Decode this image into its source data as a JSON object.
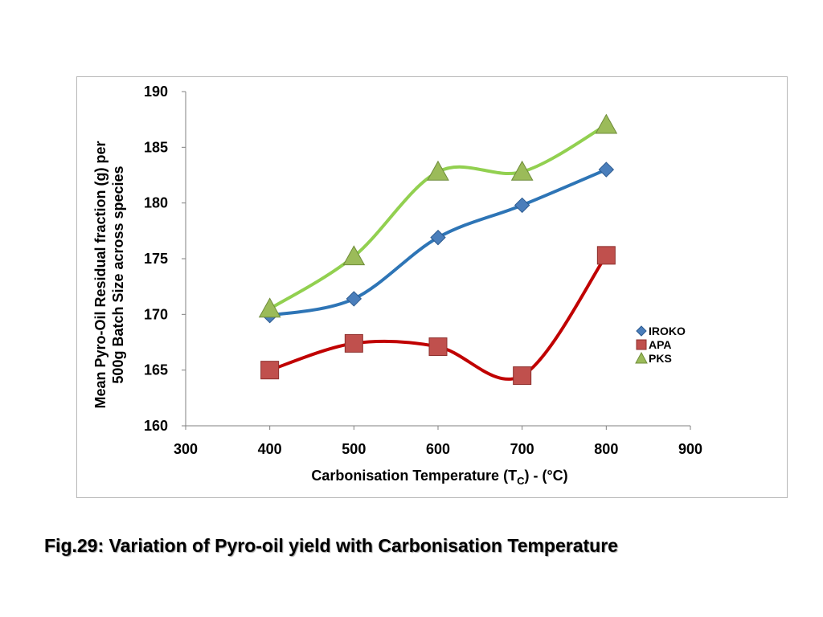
{
  "caption": "Fig.29: Variation of Pyro-oil yield with Carbonisation Temperature",
  "chart_data": {
    "type": "scatter",
    "title": "",
    "xlabel": {
      "before": "Carbonisation Temperature (T",
      "sub": "C",
      "after": ") - (°C)"
    },
    "ylabel_lines": [
      "Mean Pyro-Oil Residual fraction (g) per",
      "500g Batch  Size across  species"
    ],
    "xlim": [
      300,
      900
    ],
    "ylim": [
      160,
      190
    ],
    "xticks": [
      300,
      400,
      500,
      600,
      700,
      800,
      900
    ],
    "yticks": [
      160,
      165,
      170,
      175,
      180,
      185,
      190
    ],
    "grid": false,
    "legend_position": "right",
    "smoothed_lines": true,
    "series": [
      {
        "name": "IROKO",
        "marker": "diamond",
        "color": "#2e75b6",
        "marker_color": "#4a7ebb",
        "x": [
          400,
          500,
          600,
          700,
          800
        ],
        "y": [
          169.9,
          171.4,
          176.9,
          179.8,
          183.0
        ]
      },
      {
        "name": "APA",
        "marker": "square",
        "color": "#c00000",
        "marker_color": "#c0504d",
        "x": [
          400,
          500,
          600,
          700,
          800
        ],
        "y": [
          165.0,
          167.4,
          167.1,
          164.5,
          175.3
        ]
      },
      {
        "name": "PKS",
        "marker": "triangle",
        "color": "#92d050",
        "marker_color": "#9bbb59",
        "x": [
          400,
          500,
          600,
          700,
          800
        ],
        "y": [
          170.5,
          175.2,
          182.8,
          182.8,
          187.0
        ]
      }
    ]
  }
}
